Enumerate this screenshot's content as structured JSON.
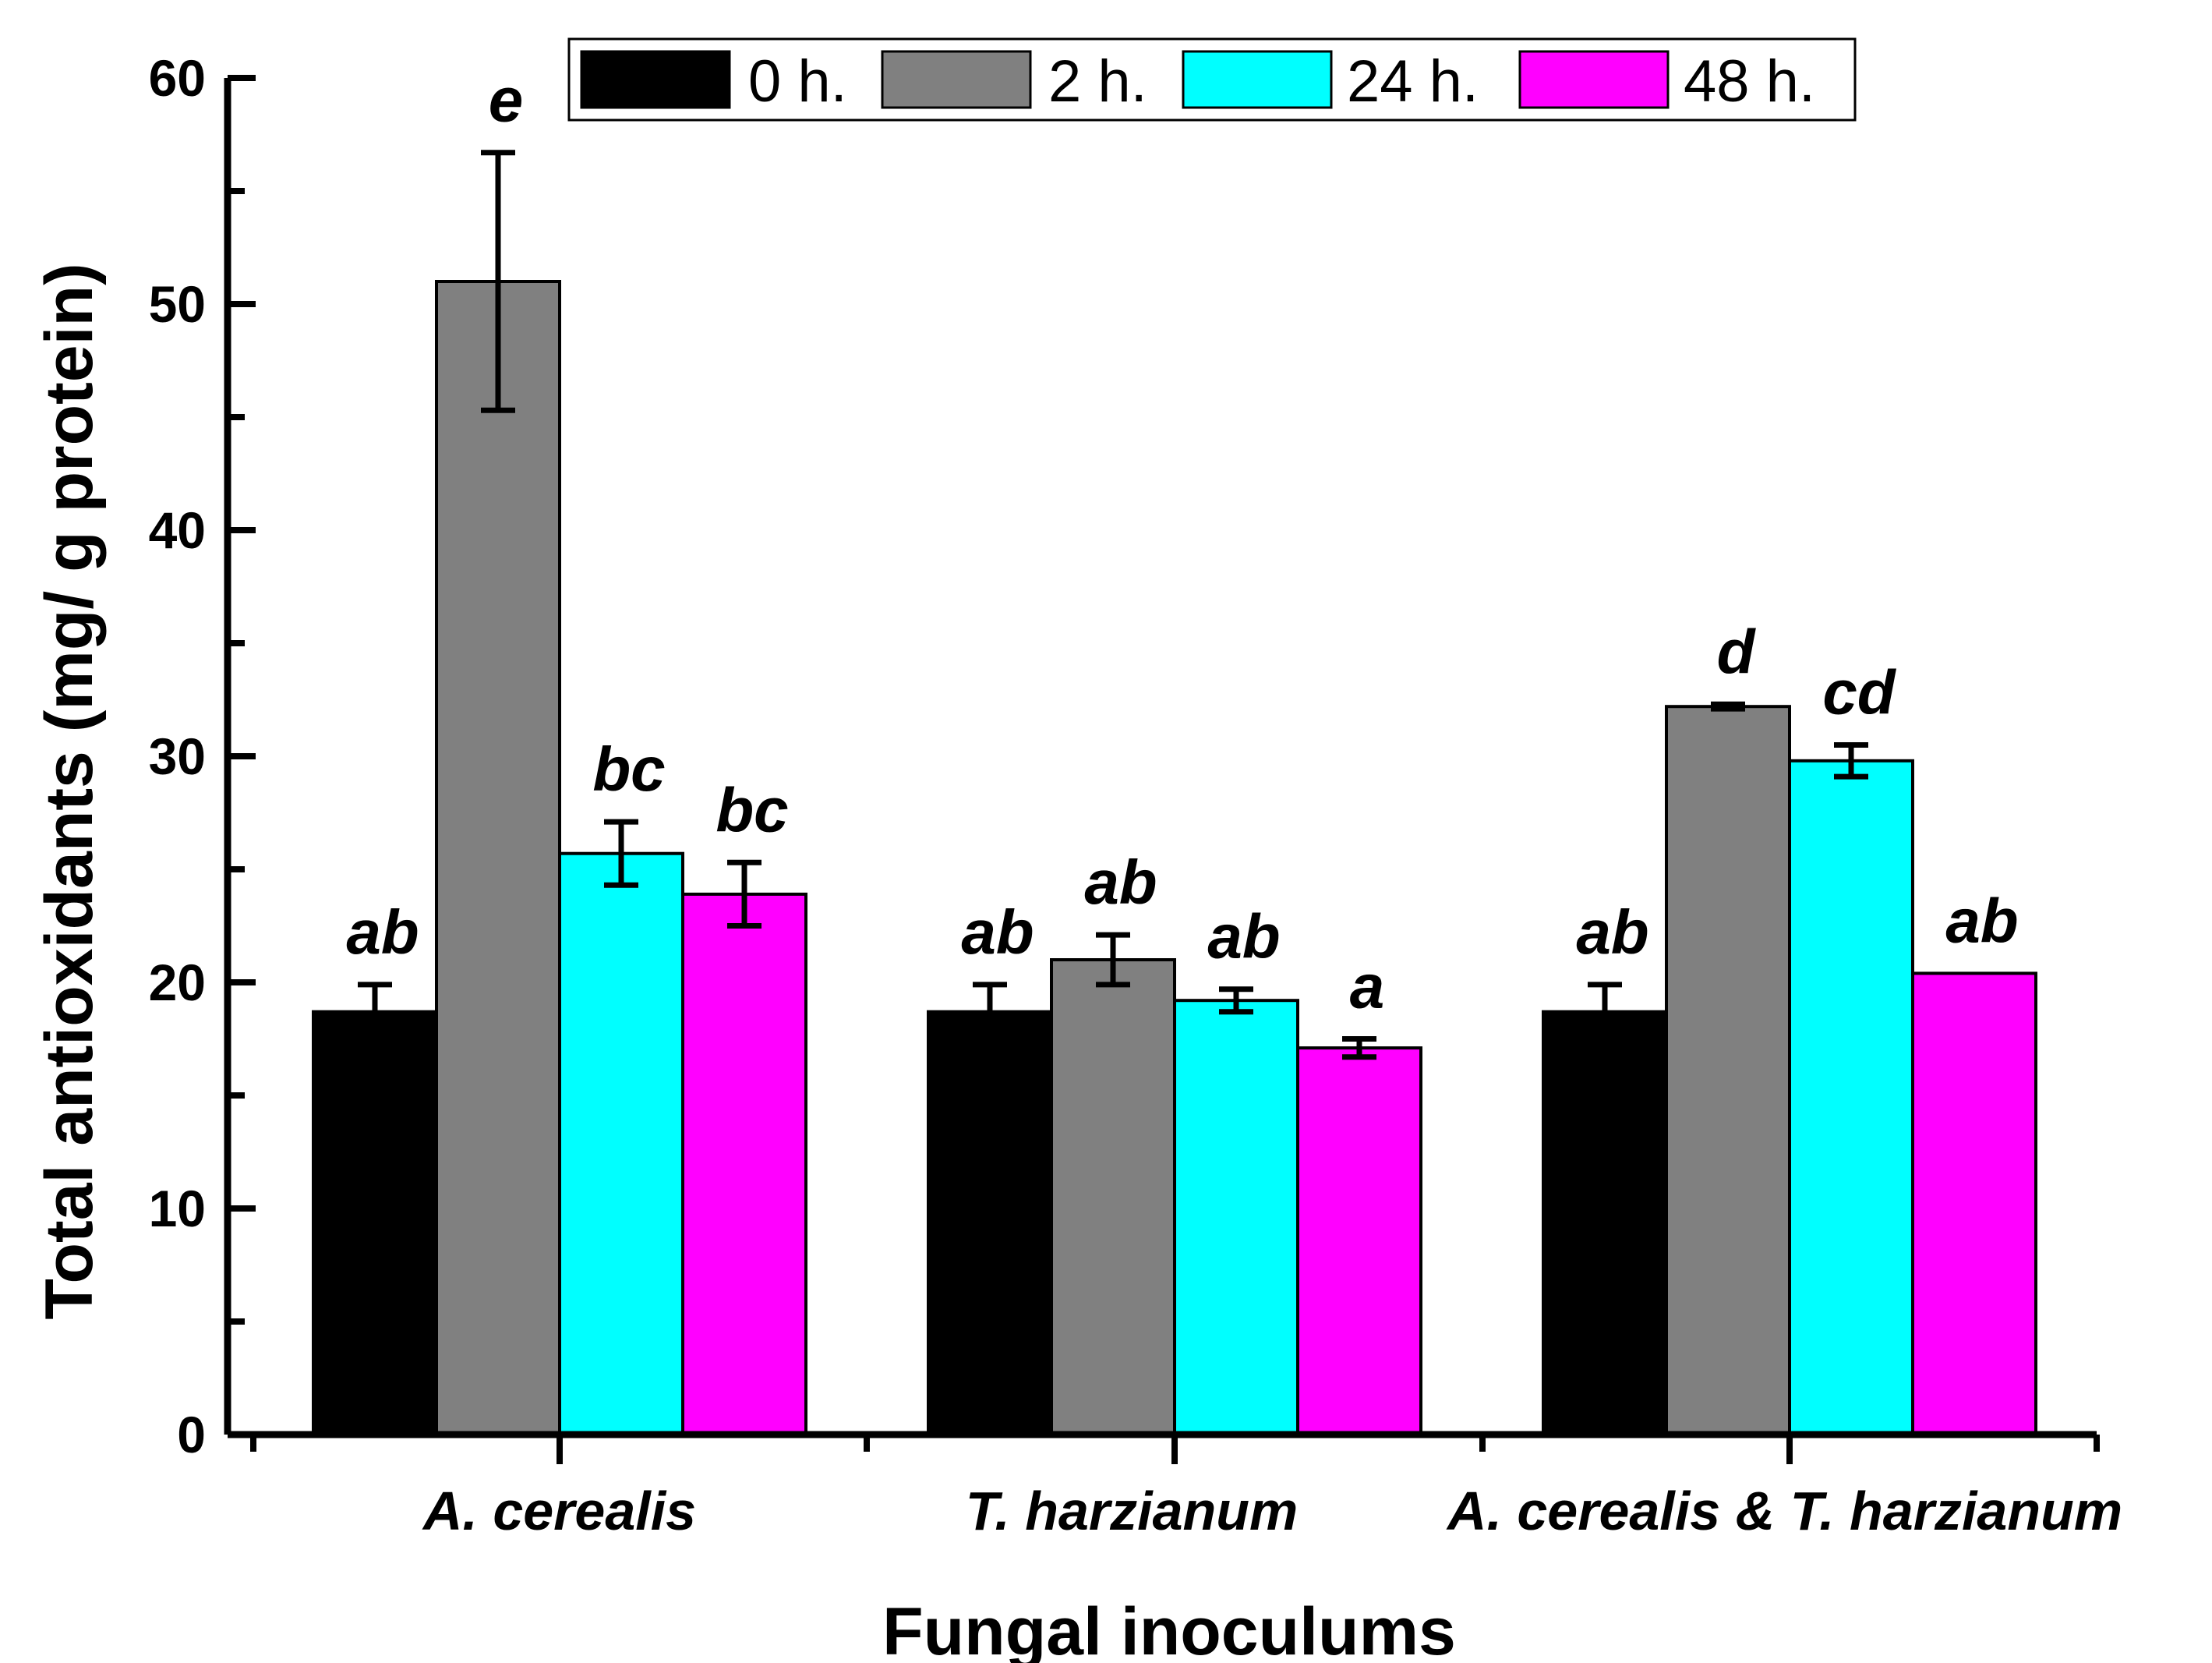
{
  "chart_data": {
    "type": "bar",
    "title": "",
    "xlabel": "Fungal inoculums",
    "ylabel": "Total antioxidants (mg/ g protein)",
    "ylim": [
      0,
      60
    ],
    "yticks": [
      "0",
      "10",
      "20",
      "30",
      "40",
      "50",
      "60"
    ],
    "categories": [
      "A. cerealis",
      "T. harzianum",
      "A. cerealis & T. harzianum"
    ],
    "legend_position": "top",
    "series": [
      {
        "name": "0 h.",
        "color": "#000000",
        "values": [
          18.7,
          18.7,
          18.7
        ],
        "errors": [
          1.2,
          1.2,
          1.2
        ],
        "labels": [
          "ab",
          "ab",
          "ab"
        ]
      },
      {
        "name": "2 h.",
        "color": "#808080",
        "values": [
          51.0,
          21.0,
          32.2
        ],
        "errors": [
          5.7,
          1.1,
          0.1
        ],
        "labels": [
          "e",
          "ab",
          "d"
        ]
      },
      {
        "name": "24 h.",
        "color": "#00FFFF",
        "values": [
          25.7,
          19.2,
          29.8
        ],
        "errors": [
          1.4,
          0.5,
          0.7
        ],
        "labels": [
          "bc",
          "ab",
          "cd"
        ]
      },
      {
        "name": "48 h.",
        "color": "#FF00FF",
        "values": [
          23.9,
          17.1,
          20.4
        ],
        "errors": [
          1.4,
          0.4,
          0.0
        ],
        "labels": [
          "bc",
          "a",
          "ab"
        ]
      }
    ]
  }
}
